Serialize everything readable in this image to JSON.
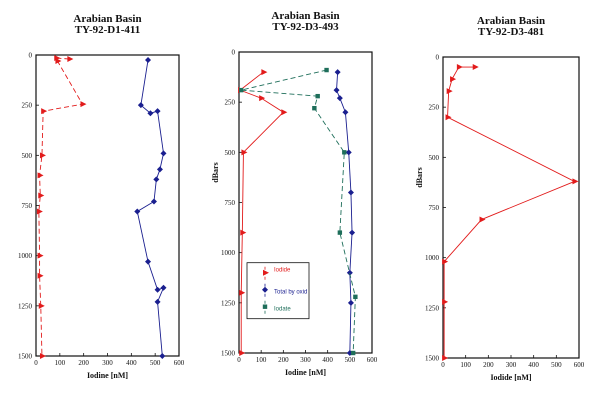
{
  "chart_data": [
    {
      "type": "line",
      "title_line1": "Arabian Basin",
      "title_line2": "TY-92-D1-411",
      "xlabel": "Iodine [nM]",
      "ylabel": "",
      "xlim": [
        0,
        600
      ],
      "ylim": [
        1500,
        0
      ],
      "x_ticks": [
        "0",
        "100",
        "200",
        "300",
        "400",
        "500",
        "600"
      ],
      "y_ticks": [
        {
          "value": 0,
          "label": "0"
        },
        {
          "value": 250,
          "label": "250"
        },
        {
          "value": 500,
          "label": "500"
        },
        {
          "value": 750,
          "label": "750"
        },
        {
          "value": 1000,
          "label": "1000"
        },
        {
          "value": 1250,
          "label": "1250"
        },
        {
          "value": 1500,
          "label": "1500"
        }
      ],
      "grid": false,
      "series": [
        {
          "name": "",
          "color": "#e21b1b",
          "marker": "triangle",
          "dash": "5,3",
          "points": [
            [
              140,
              20
            ],
            [
              85,
              15
            ],
            [
              90,
              30
            ],
            [
              195,
              245
            ],
            [
              30,
              280
            ],
            [
              25,
              500
            ],
            [
              15,
              600
            ],
            [
              18,
              700
            ],
            [
              12,
              780
            ],
            [
              15,
              1000
            ],
            [
              15,
              1100
            ],
            [
              20,
              1250
            ],
            [
              25,
              1500
            ]
          ]
        },
        {
          "name": "",
          "color": "#1a1f8f",
          "marker": "diamond",
          "dash": "",
          "points": [
            [
              470,
              25
            ],
            [
              440,
              250
            ],
            [
              480,
              290
            ],
            [
              510,
              280
            ],
            [
              535,
              490
            ],
            [
              520,
              570
            ],
            [
              505,
              620
            ],
            [
              495,
              730
            ],
            [
              425,
              780
            ],
            [
              470,
              1030
            ],
            [
              510,
              1170
            ],
            [
              535,
              1160
            ],
            [
              510,
              1230
            ],
            [
              530,
              1500
            ]
          ]
        }
      ]
    },
    {
      "type": "line",
      "title_line1": "Arabian Basin",
      "title_line2": "TY-92-D3-493",
      "xlabel": "Iodine [nM]",
      "ylabel": "dBars",
      "xlim": [
        0,
        600
      ],
      "ylim": [
        1500,
        0
      ],
      "x_ticks": [
        "0",
        "100",
        "200",
        "300",
        "400",
        "500",
        "600"
      ],
      "y_ticks": [
        {
          "value": 0,
          "label": "0"
        },
        {
          "value": 250,
          "label": "250"
        },
        {
          "value": 500,
          "label": "500"
        },
        {
          "value": 750,
          "label": "750"
        },
        {
          "value": 1000,
          "label": "1000"
        },
        {
          "value": 1250,
          "label": "1250"
        },
        {
          "value": 1500,
          "label": "1500"
        }
      ],
      "grid": false,
      "legend": {
        "placement": "bottom-left",
        "entries": [
          {
            "label": "Iodide",
            "color": "#e21b1b",
            "marker": "triangle"
          },
          {
            "label": "Total by oxid",
            "color": "#1a1f8f",
            "marker": "diamond"
          },
          {
            "label": "Iodate",
            "color": "#1e6e5a",
            "marker": "square"
          }
        ]
      },
      "series": [
        {
          "name": "Iodide",
          "color": "#e21b1b",
          "marker": "triangle",
          "dash": "",
          "points": [
            [
              110,
              100
            ],
            [
              5,
              190
            ],
            [
              100,
              230
            ],
            [
              200,
              300
            ],
            [
              20,
              500
            ],
            [
              15,
              900
            ],
            [
              10,
              1200
            ],
            [
              10,
              1500
            ]
          ]
        },
        {
          "name": "Total by oxid",
          "color": "#1a1f8f",
          "marker": "diamond",
          "dash": "",
          "points": [
            [
              445,
              100
            ],
            [
              440,
              190
            ],
            [
              455,
              230
            ],
            [
              480,
              300
            ],
            [
              495,
              500
            ],
            [
              505,
              700
            ],
            [
              510,
              900
            ],
            [
              500,
              1100
            ],
            [
              505,
              1250
            ],
            [
              500,
              1500
            ]
          ]
        },
        {
          "name": "Iodate",
          "color": "#1e6e5a",
          "marker": "square",
          "dash": "5,3",
          "points": [
            [
              395,
              90
            ],
            [
              10,
              190
            ],
            [
              355,
              220
            ],
            [
              340,
              280
            ],
            [
              475,
              500
            ],
            [
              455,
              900
            ],
            [
              525,
              1220
            ],
            [
              515,
              1500
            ]
          ]
        }
      ]
    },
    {
      "type": "line",
      "title_line1": "Arabian Basin",
      "title_line2": "TY-92-D3-481",
      "xlabel": "Iodide [nM]",
      "ylabel": "dBars",
      "xlim": [
        0,
        600
      ],
      "ylim": [
        1500,
        0
      ],
      "x_ticks": [
        "0",
        "100",
        "200",
        "300",
        "400",
        "500",
        "600"
      ],
      "y_ticks": [
        {
          "value": 0,
          "label": "0"
        },
        {
          "value": 250,
          "label": "250"
        },
        {
          "value": 500,
          "label": "500"
        },
        {
          "value": 750,
          "label": "750"
        },
        {
          "value": 1000,
          "label": "1000"
        },
        {
          "value": 1250,
          "label": "1250"
        },
        {
          "value": 1500,
          "label": "1500"
        }
      ],
      "grid": false,
      "series": [
        {
          "name": "",
          "color": "#e21b1b",
          "marker": "triangle",
          "dash": "",
          "points": [
            [
              140,
              50
            ],
            [
              70,
              50
            ],
            [
              40,
              110
            ],
            [
              25,
              170
            ],
            [
              20,
              300
            ],
            [
              580,
              620
            ],
            [
              170,
              810
            ],
            [
              5,
              1020
            ],
            [
              5,
              1220
            ],
            [
              5,
              1500
            ]
          ]
        }
      ]
    }
  ]
}
